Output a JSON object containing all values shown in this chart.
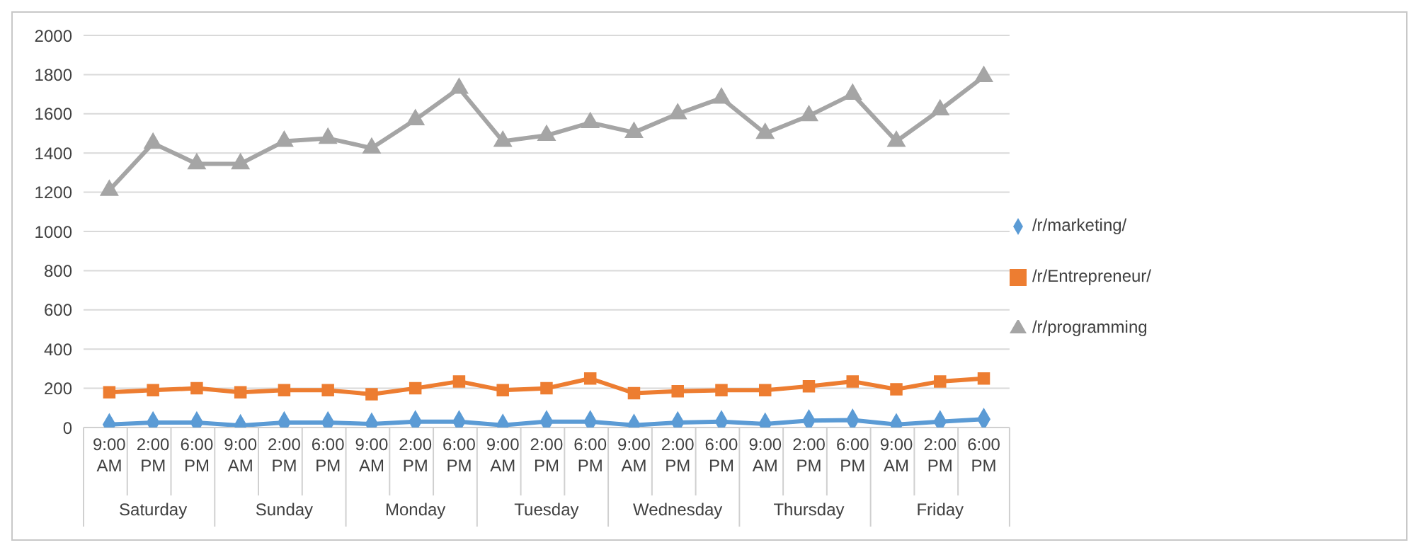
{
  "chart_data": {
    "type": "line",
    "categories": [
      "9:00 AM",
      "2:00 PM",
      "6:00 PM",
      "9:00 AM",
      "2:00 PM",
      "6:00 PM",
      "9:00 AM",
      "2:00 PM",
      "6:00 PM",
      "9:00 AM",
      "2:00 PM",
      "6:00 PM",
      "9:00 AM",
      "2:00 PM",
      "6:00 PM",
      "9:00 AM",
      "2:00 PM",
      "6:00 PM",
      "9:00 AM",
      "2:00 PM",
      "6:00 PM"
    ],
    "annotations": [
      "Saturday",
      "Sunday",
      "Monday",
      "Tuesday",
      "Wednesday",
      "Thursday",
      "Friday"
    ],
    "series": [
      {
        "name": "/r/marketing/",
        "color": "#5b9bd5",
        "marker": "diamond",
        "values": [
          15,
          25,
          25,
          10,
          25,
          25,
          18,
          30,
          30,
          12,
          30,
          30,
          12,
          25,
          30,
          18,
          35,
          38,
          15,
          30,
          42
        ]
      },
      {
        "name": "/r/Entrepreneur/",
        "color": "#ed7d31",
        "marker": "square",
        "values": [
          180,
          190,
          200,
          180,
          190,
          190,
          170,
          200,
          235,
          190,
          200,
          250,
          175,
          185,
          190,
          190,
          210,
          235,
          195,
          235,
          250
        ]
      },
      {
        "name": "/r/programming",
        "color": "#a5a5a5",
        "marker": "triangle",
        "values": [
          1210,
          1450,
          1345,
          1345,
          1460,
          1475,
          1425,
          1570,
          1730,
          1460,
          1490,
          1555,
          1505,
          1600,
          1680,
          1500,
          1590,
          1700,
          1460,
          1620,
          1790
        ]
      }
    ],
    "ylim": [
      0,
      2000
    ],
    "yticks": [
      0,
      200,
      400,
      600,
      800,
      1000,
      1200,
      1400,
      1600,
      1800,
      2000
    ],
    "grid": "y",
    "legend": "right"
  }
}
